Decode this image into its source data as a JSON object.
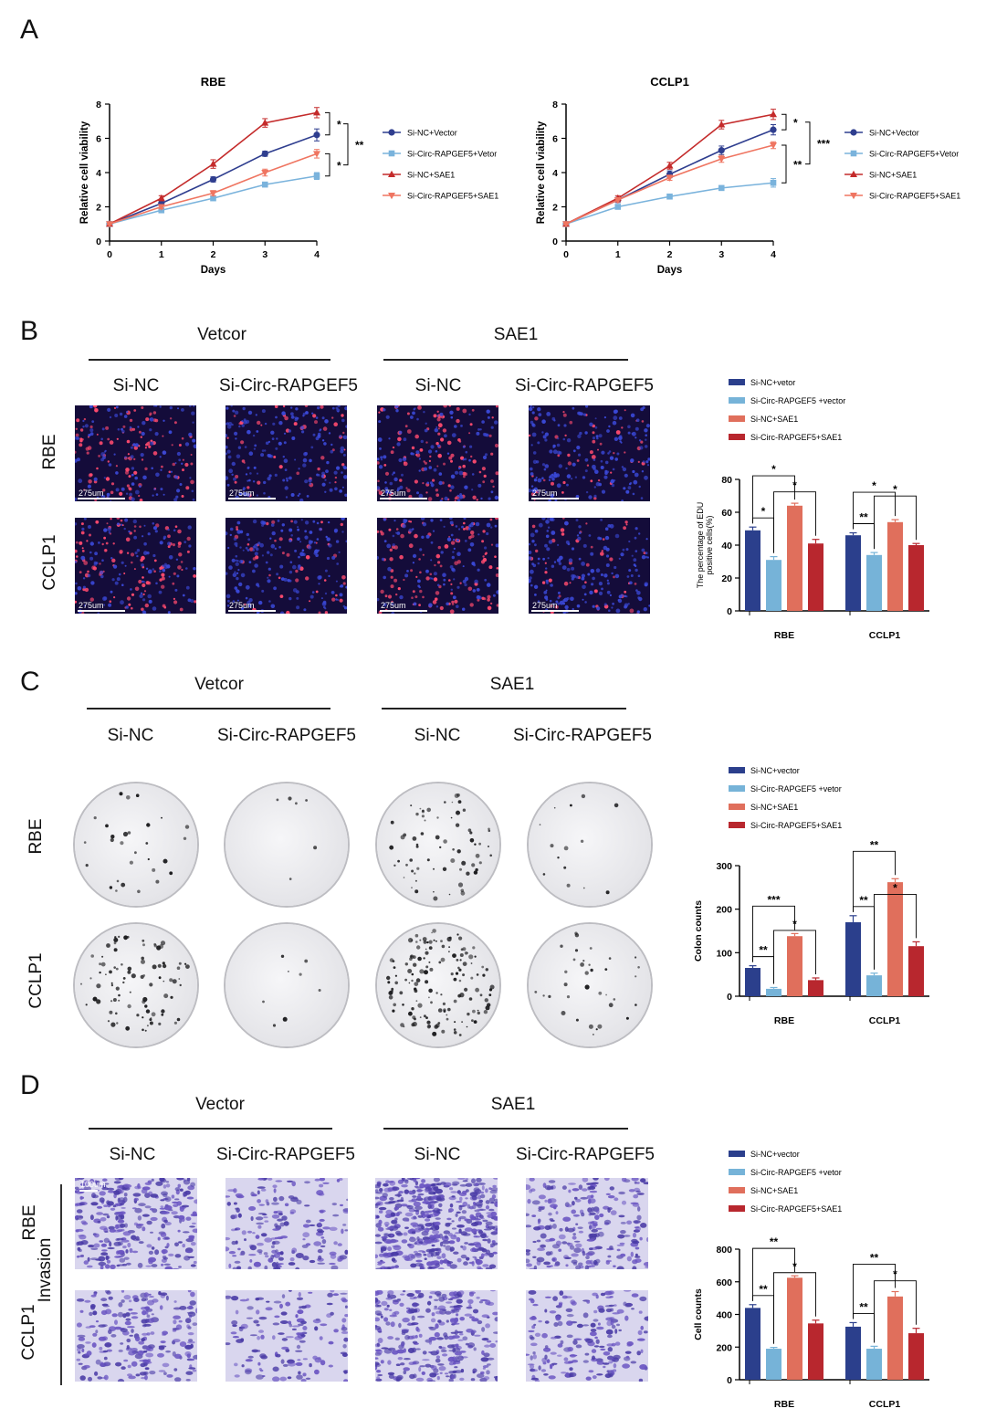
{
  "panels": {
    "A": "A",
    "B": "B",
    "C": "C",
    "D": "D"
  },
  "colors": {
    "si_nc_vector": "#2b3f8c",
    "si_circ_vector": "#76b3d8",
    "si_nc_sae1": "#e06f5c",
    "si_circ_sae1": "#b8272e",
    "line_si_nc_vector": "#2f3e8f",
    "line_si_circ_vector": "#7ab3dc",
    "line_si_nc_sae1": "#c42b2b",
    "line_si_circ_sae1": "#ef7561"
  },
  "group_labels": {
    "B": {
      "left": "Vetcor",
      "right": "SAE1"
    },
    "C": {
      "left": "Vetcor",
      "right": "SAE1"
    },
    "D": {
      "left": "Vector",
      "right": "SAE1"
    }
  },
  "column_labels": [
    "Si-NC",
    "Si-Circ-RAPGEF5",
    "Si-NC",
    "Si-Circ-RAPGEF5"
  ],
  "row_labels": {
    "rbe": "RBE",
    "cclp1": "CCLP1",
    "invasion": "Invasion"
  },
  "scale_bars": {
    "B": "275um",
    "D": "100um"
  },
  "chart_data": [
    {
      "id": "A-RBE",
      "type": "line",
      "title": "RBE",
      "xlabel": "Days",
      "ylabel": "Relative cell viability",
      "x": [
        0,
        1,
        2,
        3,
        4
      ],
      "xlim": [
        0,
        4
      ],
      "ylim": [
        0,
        8
      ],
      "yticks": [
        0,
        2,
        4,
        6,
        8
      ],
      "series": [
        {
          "name": "Si-NC+Vector",
          "marker": "circle",
          "values": [
            1.0,
            2.2,
            3.6,
            5.1,
            6.2
          ],
          "err": [
            0.05,
            0.15,
            0.15,
            0.15,
            0.35
          ]
        },
        {
          "name": "Si-Circ-RAPGEF5+Vetor",
          "marker": "square",
          "values": [
            1.0,
            1.8,
            2.5,
            3.3,
            3.8
          ],
          "err": [
            0.05,
            0.1,
            0.12,
            0.12,
            0.2
          ]
        },
        {
          "name": "Si-NC+SAE1",
          "marker": "triangle-up",
          "values": [
            1.0,
            2.5,
            4.5,
            6.9,
            7.5
          ],
          "err": [
            0.05,
            0.15,
            0.25,
            0.25,
            0.3
          ]
        },
        {
          "name": "Si-Circ-RAPGEF5+SAE1",
          "marker": "triangle-down",
          "values": [
            1.0,
            2.0,
            2.8,
            4.0,
            5.1
          ],
          "err": [
            0.05,
            0.12,
            0.15,
            0.2,
            0.25
          ]
        }
      ],
      "significance": [
        {
          "between": [
            "Si-NC+SAE1",
            "Si-NC+Vector"
          ],
          "label": "*"
        },
        {
          "between": [
            "Si-Circ-RAPGEF5+SAE1",
            "Si-Circ-RAPGEF5+Vetor"
          ],
          "label": "*"
        },
        {
          "between": [
            "Si-NC+Vector",
            "Si-Circ-RAPGEF5+Vetor"
          ],
          "label": "**"
        }
      ]
    },
    {
      "id": "A-CCLP1",
      "type": "line",
      "title": "CCLP1",
      "xlabel": "Days",
      "ylabel": "Relative cell viability",
      "x": [
        0,
        1,
        2,
        3,
        4
      ],
      "xlim": [
        0,
        4
      ],
      "ylim": [
        0,
        8
      ],
      "yticks": [
        0,
        2,
        4,
        6,
        8
      ],
      "series": [
        {
          "name": "Si-NC+Vector",
          "marker": "circle",
          "values": [
            1.0,
            2.4,
            3.9,
            5.3,
            6.5
          ],
          "err": [
            0.05,
            0.15,
            0.2,
            0.25,
            0.3
          ]
        },
        {
          "name": "Si-Circ-RAPGEF5+Vetor",
          "marker": "square",
          "values": [
            1.0,
            2.0,
            2.6,
            3.1,
            3.4
          ],
          "err": [
            0.05,
            0.08,
            0.1,
            0.1,
            0.25
          ]
        },
        {
          "name": "Si-NC+SAE1",
          "marker": "triangle-up",
          "values": [
            1.0,
            2.5,
            4.4,
            6.8,
            7.4
          ],
          "err": [
            0.05,
            0.15,
            0.2,
            0.25,
            0.3
          ]
        },
        {
          "name": "Si-Circ-RAPGEF5+SAE1",
          "marker": "triangle-down",
          "values": [
            1.0,
            2.4,
            3.7,
            4.8,
            5.6
          ],
          "err": [
            0.05,
            0.12,
            0.15,
            0.2,
            0.2
          ]
        }
      ],
      "significance": [
        {
          "between": [
            "Si-NC+SAE1",
            "Si-NC+Vector"
          ],
          "label": "*"
        },
        {
          "between": [
            "Si-Circ-RAPGEF5+SAE1",
            "Si-Circ-RAPGEF5+Vetor"
          ],
          "label": "**"
        },
        {
          "between": [
            "Si-NC+Vector",
            "Si-Circ-RAPGEF5+Vetor"
          ],
          "label": "***"
        }
      ]
    },
    {
      "id": "B-EDU",
      "type": "bar",
      "ylabel": "The percentage of EDU positive cells(%)",
      "categories": [
        "RBE",
        "CCLP1"
      ],
      "ylim": [
        0,
        80
      ],
      "yticks": [
        0,
        20,
        40,
        60,
        80
      ],
      "legend": [
        "Si-NC+vetor",
        "Si-Circ-RAPGEF5 +vector",
        "Si-NC+SAE1",
        "Si-Circ-RAPGEF5+SAE1"
      ],
      "series": [
        {
          "name": "Si-NC+vetor",
          "values": [
            49,
            46
          ],
          "err": [
            2,
            1.5
          ]
        },
        {
          "name": "Si-Circ-RAPGEF5 +vector",
          "values": [
            31,
            34
          ],
          "err": [
            2,
            1.5
          ]
        },
        {
          "name": "Si-NC+SAE1",
          "values": [
            64,
            54
          ],
          "err": [
            1.5,
            1.5
          ]
        },
        {
          "name": "Si-Circ-RAPGEF5+SAE1",
          "values": [
            41,
            40
          ],
          "err": [
            2.5,
            1
          ]
        }
      ],
      "significance": [
        {
          "category": "RBE",
          "pair": [
            0,
            1
          ],
          "label": "*"
        },
        {
          "category": "RBE",
          "pair": [
            0,
            2
          ],
          "label": "*"
        },
        {
          "category": "RBE",
          "pair": [
            1,
            3
          ],
          "label": "*"
        },
        {
          "category": "CCLP1",
          "pair": [
            0,
            1
          ],
          "label": "**"
        },
        {
          "category": "CCLP1",
          "pair": [
            0,
            2
          ],
          "label": "*"
        },
        {
          "category": "CCLP1",
          "pair": [
            1,
            3
          ],
          "label": "*"
        }
      ]
    },
    {
      "id": "C-Colony",
      "type": "bar",
      "ylabel": "Colon counts",
      "categories": [
        "RBE",
        "CCLP1"
      ],
      "ylim": [
        0,
        300
      ],
      "yticks": [
        0,
        100,
        200,
        300
      ],
      "legend": [
        "Si-NC+vector",
        "Si-Circ-RAPGEF5 +vetor",
        "Si-NC+SAE1",
        "Si-Circ-RAPGEF5+SAE1"
      ],
      "series": [
        {
          "name": "Si-NC+vector",
          "values": [
            65,
            170
          ],
          "err": [
            5,
            15
          ]
        },
        {
          "name": "Si-Circ-RAPGEF5 +vetor",
          "values": [
            17,
            48
          ],
          "err": [
            3,
            5
          ]
        },
        {
          "name": "Si-NC+SAE1",
          "values": [
            138,
            262
          ],
          "err": [
            6,
            8
          ]
        },
        {
          "name": "Si-Circ-RAPGEF5+SAE1",
          "values": [
            37,
            115
          ],
          "err": [
            5,
            10
          ]
        }
      ],
      "significance": [
        {
          "category": "RBE",
          "pair": [
            0,
            1
          ],
          "label": "**"
        },
        {
          "category": "RBE",
          "pair": [
            0,
            2
          ],
          "label": "***"
        },
        {
          "category": "RBE",
          "pair": [
            1,
            3
          ],
          "label": "*"
        },
        {
          "category": "CCLP1",
          "pair": [
            0,
            1
          ],
          "label": "**"
        },
        {
          "category": "CCLP1",
          "pair": [
            0,
            2
          ],
          "label": "**"
        },
        {
          "category": "CCLP1",
          "pair": [
            1,
            3
          ],
          "label": "*"
        }
      ]
    },
    {
      "id": "D-Invasion",
      "type": "bar",
      "ylabel": "Cell counts",
      "categories": [
        "RBE",
        "CCLP1"
      ],
      "ylim": [
        0,
        800
      ],
      "yticks": [
        0,
        200,
        400,
        600,
        800
      ],
      "legend": [
        "Si-NC+vector",
        "Si-Circ-RAPGEF5 +vetor",
        "Si-NC+SAE1",
        "Si-Circ-RAPGEF5+SAE1"
      ],
      "series": [
        {
          "name": "Si-NC+vector",
          "values": [
            440,
            325
          ],
          "err": [
            20,
            25
          ]
        },
        {
          "name": "Si-Circ-RAPGEF5 +vetor",
          "values": [
            190,
            190
          ],
          "err": [
            8,
            15
          ]
        },
        {
          "name": "Si-NC+SAE1",
          "values": [
            625,
            510
          ],
          "err": [
            12,
            30
          ]
        },
        {
          "name": "Si-Circ-RAPGEF5+SAE1",
          "values": [
            345,
            285
          ],
          "err": [
            20,
            30
          ]
        }
      ],
      "significance": [
        {
          "category": "RBE",
          "pair": [
            0,
            1
          ],
          "label": "**"
        },
        {
          "category": "RBE",
          "pair": [
            0,
            2
          ],
          "label": "**"
        },
        {
          "category": "RBE",
          "pair": [
            1,
            3
          ],
          "label": "*"
        },
        {
          "category": "CCLP1",
          "pair": [
            0,
            1
          ],
          "label": "**"
        },
        {
          "category": "CCLP1",
          "pair": [
            0,
            2
          ],
          "label": "**"
        },
        {
          "category": "CCLP1",
          "pair": [
            1,
            3
          ],
          "label": "*"
        }
      ]
    }
  ]
}
